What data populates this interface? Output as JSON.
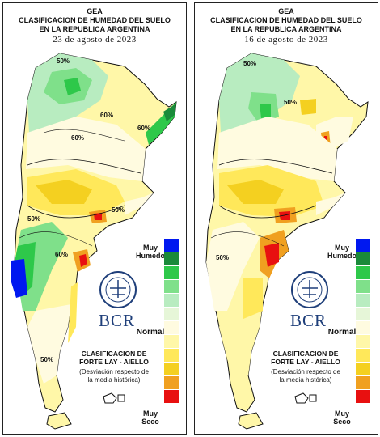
{
  "panels": [
    {
      "id": "left",
      "org": "GEA",
      "title_line1": "CLASIFICACION DE HUMEDAD DEL SUELO",
      "title_line2": "EN LA REPUBLICA ARGENTINA",
      "date": "23 de agosto de 2023",
      "isolines": [
        "50%",
        "60%",
        "60%",
        "50%",
        "50%",
        "60%",
        "60%",
        "50%"
      ]
    },
    {
      "id": "right",
      "org": "GEA",
      "title_line1": "CLASIFICACION DE HUMEDAD DEL SUELO",
      "title_line2": "EN LA REPUBLICA ARGENTINA",
      "date": "16 de agosto de 2023",
      "isolines": [
        "50%",
        "50%",
        "50%"
      ]
    }
  ],
  "legend": {
    "top_label": "Muy\nHumedo",
    "mid_label": "Normal",
    "bottom_label": "Muy\nSeco",
    "colors": [
      "#0018f0",
      "#1a8a3a",
      "#2ec84a",
      "#7fe08a",
      "#b8ecc0",
      "#e6f6d8",
      "#fffbe0",
      "#fff7a8",
      "#ffe85a",
      "#f4d020",
      "#f0a020",
      "#e81010"
    ]
  },
  "classification_title": "CLASIFICACION DE\nFORTE LAY - AIELLO",
  "classification_subtitle": "(Desviación respecto de\nla media histórica)",
  "logo": {
    "text": "BCR"
  },
  "map_colors": {
    "very_wet": "#0018f0",
    "dark_green": "#1a8a3a",
    "green": "#2ec84a",
    "light_green": "#7fe08a",
    "pale_green": "#b8ecc0",
    "cream": "#fffbe0",
    "light_yellow": "#fff7a8",
    "yellow": "#ffe85a",
    "gold": "#f4d020",
    "orange": "#f0a020",
    "red": "#e81010"
  }
}
